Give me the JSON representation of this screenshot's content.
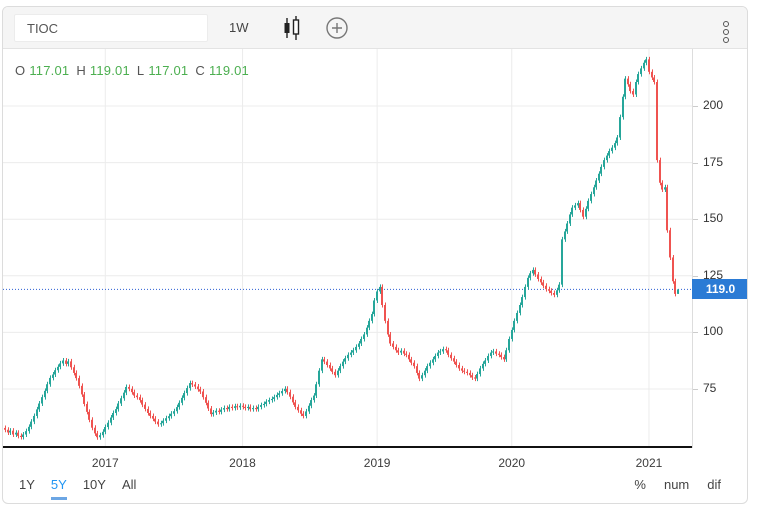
{
  "toolbar": {
    "ticker": "TIOC",
    "interval": "1W",
    "icons": [
      "candlestick-style-icon",
      "add-circle-icon",
      "kebab-menu-icon"
    ]
  },
  "legend": {
    "o_label": "O",
    "o": "117.01",
    "h_label": "H",
    "h": "119.01",
    "l_label": "L",
    "l": "117.01",
    "c_label": "C",
    "c": "119.01"
  },
  "chart_data": {
    "type": "candlestick",
    "symbol": "TIOC",
    "interval": "1W",
    "title": "",
    "y_ticks": [
      75,
      100,
      125,
      150,
      175,
      200
    ],
    "y_range": [
      50,
      228
    ],
    "x_tick_labels": [
      "2017",
      "2018",
      "2019",
      "2020",
      "2021"
    ],
    "x_tick_weeks": [
      38,
      90,
      141,
      192,
      244
    ],
    "grid": true,
    "up_color": "#26a69a",
    "down_color": "#ef5350",
    "price_line": 119.0,
    "price_label": "119.0",
    "price_line_color": "#2d5fd3",
    "price_label_bg": "#2b7bd5",
    "last_candle": {
      "open": 117.01,
      "high": 119.01,
      "low": 117.01,
      "close": 119.01
    },
    "weekly_closes": [
      57.0,
      55.8,
      56.6,
      54.9,
      55.7,
      54.3,
      53.8,
      54.9,
      56.4,
      58.3,
      60.6,
      63.1,
      66.0,
      68.6,
      71.4,
      74.2,
      77.1,
      79.9,
      81.4,
      83.3,
      84.8,
      86.3,
      87.6,
      86.1,
      87.2,
      84.6,
      82.1,
      79.8,
      76.4,
      72.6,
      68.4,
      64.9,
      61.4,
      57.9,
      55.4,
      53.7,
      54.6,
      56.1,
      58.2,
      60.1,
      62.4,
      64.4,
      66.1,
      68.6,
      70.9,
      73.4,
      75.9,
      75.1,
      73.6,
      72.1,
      71.4,
      70.1,
      68.1,
      66.2,
      64.4,
      63.1,
      61.9,
      60.6,
      59.4,
      59.9,
      61.0,
      62.1,
      63.0,
      64.1,
      65.2,
      67.0,
      68.9,
      71.1,
      73.2,
      75.4,
      77.6,
      77.0,
      76.1,
      74.9,
      73.9,
      71.4,
      68.9,
      66.4,
      63.9,
      64.6,
      65.4,
      64.9,
      65.9,
      66.6,
      66.1,
      67.1,
      66.6,
      67.4,
      66.9,
      67.6,
      67.1,
      66.6,
      67.1,
      66.1,
      66.6,
      66.1,
      67.1,
      67.9,
      68.4,
      69.4,
      70.1,
      70.6,
      71.4,
      72.4,
      73.1,
      74.1,
      75.1,
      73.6,
      71.6,
      69.1,
      67.1,
      65.6,
      64.1,
      63.1,
      65.1,
      67.6,
      70.1,
      72.1,
      77.1,
      83.1,
      88.1,
      87.1,
      85.6,
      84.1,
      82.6,
      81.1,
      83.1,
      85.1,
      87.1,
      88.6,
      90.1,
      91.1,
      92.1,
      93.6,
      95.1,
      97.1,
      99.1,
      102.1,
      105.1,
      108.1,
      114.1,
      118.1,
      120.1,
      112.1,
      105.1,
      99.1,
      95.1,
      93.6,
      92.1,
      91.1,
      91.9,
      90.6,
      90.1,
      88.1,
      86.6,
      85.1,
      82.1,
      79.6,
      81.1,
      83.1,
      85.1,
      86.6,
      88.1,
      89.6,
      91.1,
      91.6,
      92.6,
      92.1,
      90.1,
      88.6,
      87.1,
      85.6,
      84.1,
      83.1,
      82.6,
      82.1,
      81.1,
      80.1,
      79.6,
      81.6,
      84.1,
      86.1,
      87.6,
      89.6,
      91.1,
      91.6,
      90.6,
      90.1,
      89.1,
      88.1,
      92.1,
      97.1,
      101.1,
      105.1,
      108.6,
      112.1,
      115.6,
      120.1,
      124.1,
      126.1,
      127.6,
      125.6,
      123.6,
      122.1,
      120.6,
      119.1,
      118.4,
      117.4,
      116.6,
      118.6,
      121.1,
      141.1,
      144.6,
      148.1,
      152.1,
      155.1,
      156.1,
      157.1,
      154.1,
      151.1,
      154.6,
      158.1,
      161.1,
      164.1,
      167.1,
      170.1,
      173.1,
      176.1,
      178.1,
      180.1,
      181.6,
      183.6,
      186.1,
      195.1,
      204.1,
      212.1,
      209.6,
      206.6,
      205.1,
      210.6,
      214.1,
      216.6,
      219.1,
      220.6,
      215.1,
      212.6,
      210.6,
      176.1,
      166.1,
      163.1,
      164.1,
      145.1,
      133.1,
      122.6,
      117.01,
      119.01
    ]
  },
  "bottom_bar": {
    "ranges": [
      {
        "label": "1Y",
        "active": false
      },
      {
        "label": "5Y",
        "active": true
      },
      {
        "label": "10Y",
        "active": false
      },
      {
        "label": "All",
        "active": false
      }
    ],
    "modes": [
      "%",
      "num",
      "dif"
    ]
  },
  "colors": {
    "toolbar_bg": "#f5f5f5",
    "card_border": "#dcdcdc",
    "grid": "#ececec",
    "legend_value": "#4caf50",
    "active_range": "#2196f3",
    "axis_text": "#333333"
  }
}
